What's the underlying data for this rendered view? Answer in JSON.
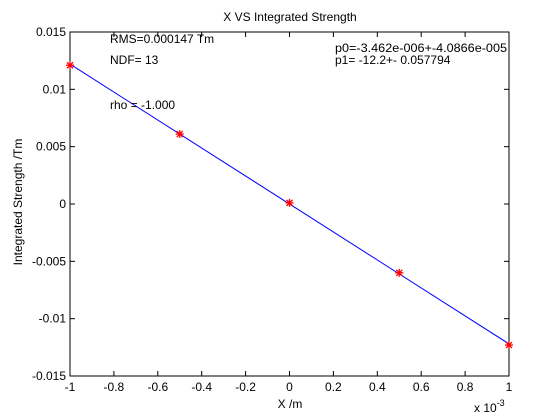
{
  "chart_data": {
    "type": "scatter",
    "title": "X VS Integrated Strength",
    "xlabel": "X /m",
    "ylabel": "Integrated Strength /Tm",
    "xlim": [
      -1,
      1
    ],
    "ylim": [
      -0.015,
      0.015
    ],
    "x_tick_labels": [
      "-1",
      "-0.8",
      "-0.6",
      "-0.4",
      "-0.2",
      "0",
      "0.2",
      "0.4",
      "0.6",
      "0.8",
      "1"
    ],
    "y_tick_labels": [
      "0.015",
      "0.01",
      "0.005",
      "0",
      "-0.005",
      "-0.01",
      "-0.015"
    ],
    "x_tick_values": [
      -1,
      -0.8,
      -0.6,
      -0.4,
      -0.2,
      0,
      0.2,
      0.4,
      0.6,
      0.8,
      1
    ],
    "y_tick_values": [
      0.015,
      0.01,
      0.005,
      0,
      -0.005,
      -0.01,
      -0.015
    ],
    "x_exponent_label": "x 10",
    "x_exponent_power": "-3",
    "grid": false,
    "series": [
      {
        "kind": "points",
        "color": "#ff0000",
        "marker": "asterisk",
        "x": [
          -1.0,
          -0.5,
          0.0,
          0.5,
          1.0
        ],
        "y": [
          0.0121,
          0.0061,
          0.0001,
          -0.006,
          -0.0123
        ]
      },
      {
        "kind": "fit-line",
        "color": "#0000ff",
        "x": [
          -1.0,
          1.0
        ],
        "y": [
          0.0122,
          -0.0122
        ]
      }
    ],
    "annotations": {
      "rms": "RMS=0.000147 Tm",
      "ndf": "NDF=   13",
      "rho": "rho     = -1.000",
      "p0": "p0=-3.462e-006+-4.0866e-005",
      "p1": "p1=    -12.2+- 0.057794"
    }
  }
}
